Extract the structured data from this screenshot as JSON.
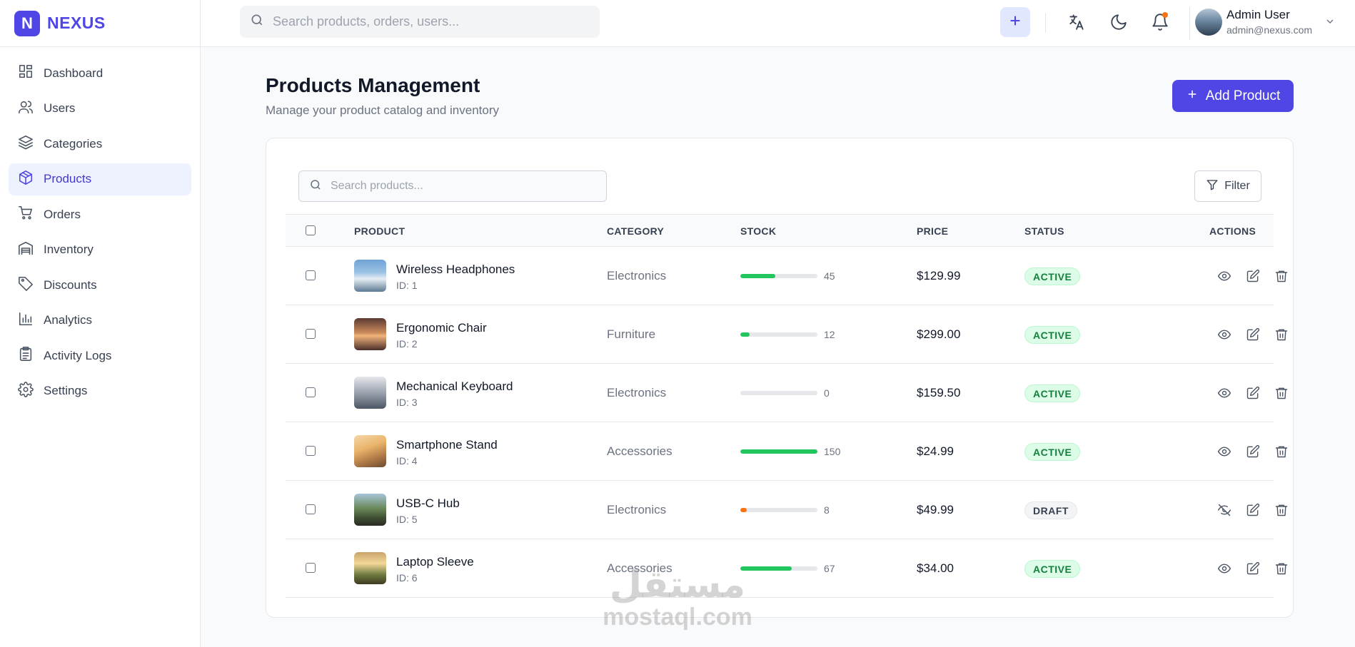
{
  "brand": {
    "logo_letter": "N",
    "name": "NEXUS",
    "color": "#4f46e5"
  },
  "sidebar": {
    "items": [
      {
        "label": "Dashboard",
        "icon": "dashboard-icon"
      },
      {
        "label": "Users",
        "icon": "users-icon"
      },
      {
        "label": "Categories",
        "icon": "layers-icon"
      },
      {
        "label": "Products",
        "icon": "box-icon",
        "active": true
      },
      {
        "label": "Orders",
        "icon": "cart-icon"
      },
      {
        "label": "Inventory",
        "icon": "warehouse-icon"
      },
      {
        "label": "Discounts",
        "icon": "tag-icon"
      },
      {
        "label": "Analytics",
        "icon": "bar-chart-icon"
      },
      {
        "label": "Activity Logs",
        "icon": "clipboard-icon"
      },
      {
        "label": "Settings",
        "icon": "gear-icon"
      }
    ]
  },
  "header": {
    "search_placeholder": "Search products, orders, users...",
    "user": {
      "name": "Admin User",
      "email": "admin@nexus.com"
    },
    "notification_dot": true
  },
  "main": {
    "title": "Products Management",
    "subtitle": "Manage your product catalog and inventory",
    "add_button": "Add Product",
    "search_placeholder": "Search products...",
    "filter_button": "Filter",
    "columns": [
      "PRODUCT",
      "CATEGORY",
      "STOCK",
      "PRICE",
      "STATUS",
      "ACTIONS"
    ],
    "products": [
      {
        "name": "Wireless Headphones",
        "id": "ID: 1",
        "category": "Electronics",
        "stock": "45",
        "stock_fraction": 0.45,
        "stock_color": "#22c55e",
        "price": "$129.99",
        "status": "ACTIVE",
        "visible": true,
        "thumb": "linear-gradient(180deg,#6fa3d6 0%,#9cc3e4 40%,#e7eef3 60%,#5b7a94 100%)"
      },
      {
        "name": "Ergonomic Chair",
        "id": "ID: 2",
        "category": "Furniture",
        "stock": "12",
        "stock_fraction": 0.12,
        "stock_color": "#22c55e",
        "price": "$299.00",
        "status": "ACTIVE",
        "visible": true,
        "thumb": "linear-gradient(180deg,#5b3a33 0%,#c98a5a 45%,#f1b37a 55%,#4a2e2a 100%)"
      },
      {
        "name": "Mechanical Keyboard",
        "id": "ID: 3",
        "category": "Electronics",
        "stock": "0",
        "stock_fraction": 0,
        "stock_color": "#22c55e",
        "price": "$159.50",
        "status": "ACTIVE",
        "visible": true,
        "thumb": "linear-gradient(180deg,#e5e7eb 0%,#9ca3af 50%,#4b5563 100%)"
      },
      {
        "name": "Smartphone Stand",
        "id": "ID: 4",
        "category": "Accessories",
        "stock": "150",
        "stock_fraction": 1.0,
        "stock_color": "#22c55e",
        "price": "$24.99",
        "status": "ACTIVE",
        "visible": true,
        "thumb": "linear-gradient(160deg,#f6d7a7 0%,#e9b36b 40%,#b07a47 70%,#6b4b2f 100%)"
      },
      {
        "name": "USB-C Hub",
        "id": "ID: 5",
        "category": "Electronics",
        "stock": "8",
        "stock_fraction": 0.08,
        "stock_color": "#f97316",
        "price": "$49.99",
        "status": "DRAFT",
        "visible": false,
        "thumb": "linear-gradient(180deg,#a7c4d9 0%,#6b8a5a 45%,#3f4f33 75%,#2a2a22 100%)"
      },
      {
        "name": "Laptop Sleeve",
        "id": "ID: 6",
        "category": "Accessories",
        "stock": "67",
        "stock_fraction": 0.67,
        "stock_color": "#22c55e",
        "price": "$34.00",
        "status": "ACTIVE",
        "visible": true,
        "thumb": "linear-gradient(180deg,#c7a46a 0%,#f5d79a 35%,#6f7a3f 70%,#3e3a22 100%)"
      }
    ]
  },
  "watermark": {
    "arabic": "مستقل",
    "latin": "mostaql.com"
  }
}
